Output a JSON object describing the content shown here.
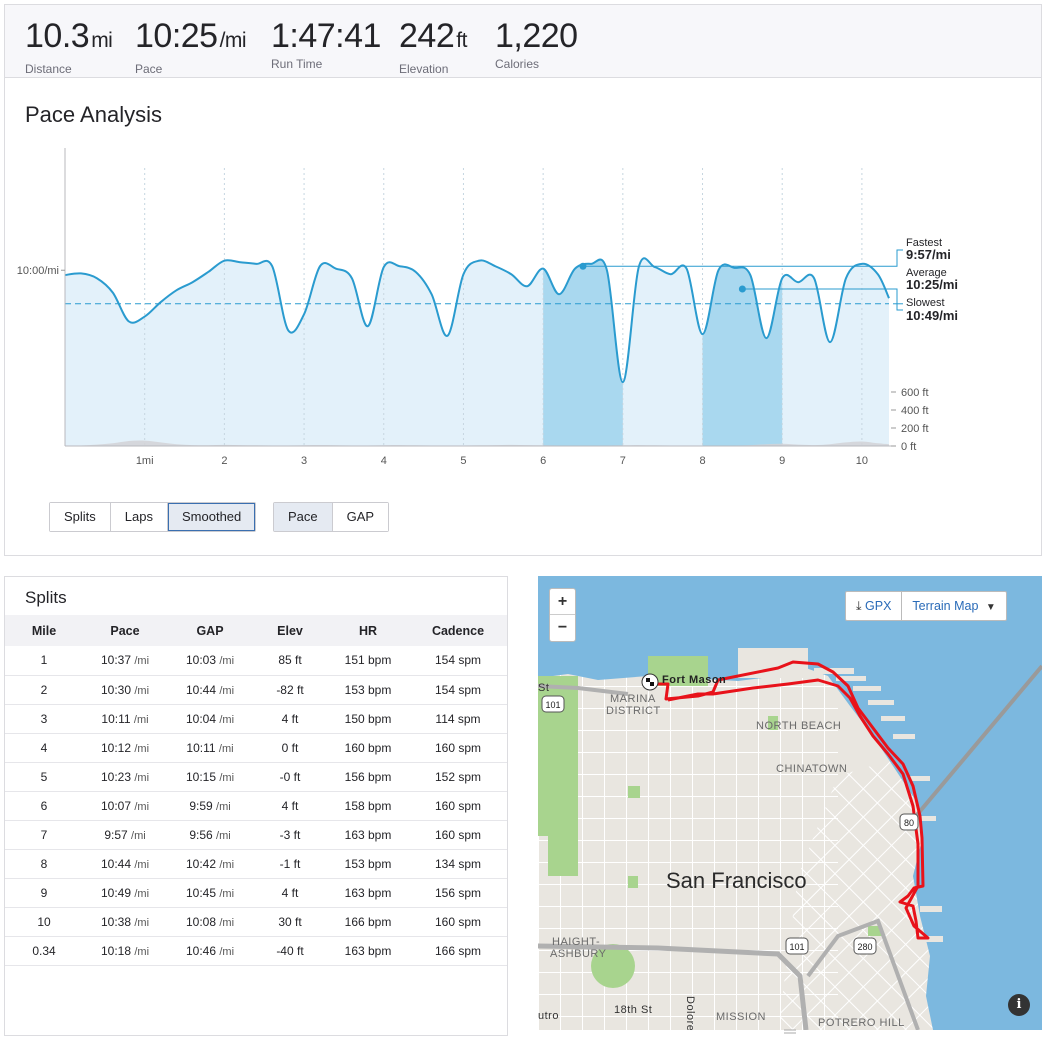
{
  "stats": [
    {
      "value": "10.3",
      "unit": "mi",
      "label": "Distance"
    },
    {
      "value": "10:25",
      "unit": "/mi",
      "label": "Pace"
    },
    {
      "value": "1:47:41",
      "unit": "",
      "label": "Run Time"
    },
    {
      "value": "242",
      "unit": "ft",
      "label": "Elevation"
    },
    {
      "value": "1,220",
      "unit": "",
      "label": "Calories"
    }
  ],
  "pace_analysis": {
    "title": "Pace Analysis",
    "y_reference_label": "10:00/mi",
    "x_ticks": [
      "1mi",
      "2",
      "3",
      "4",
      "5",
      "6",
      "7",
      "8",
      "9",
      "10"
    ],
    "elev_ticks": [
      "600 ft",
      "400 ft",
      "200 ft",
      "0 ft"
    ],
    "fastest_label": "Fastest",
    "fastest_value": "9:57/mi",
    "average_label": "Average",
    "average_value": "10:25/mi",
    "slowest_label": "Slowest",
    "slowest_value": "10:49/mi",
    "highlighted_miles": [
      6,
      8
    ],
    "view_buttons": [
      "Splits",
      "Laps",
      "Smoothed"
    ],
    "view_active": "Smoothed",
    "metric_buttons": [
      "Pace",
      "GAP"
    ],
    "metric_active": "Pace"
  },
  "chart_data": {
    "type": "area",
    "title": "Pace Analysis",
    "xlabel": "",
    "ylabel": "",
    "x_unit": "mi",
    "y_unit": "min/mi",
    "xlim": [
      0,
      10.34
    ],
    "ylim_pace_min_per_mi_top_to_bottom": [
      8.47,
      12.2
    ],
    "reference_y": 10.0,
    "average": 10.42,
    "fastest": 9.95,
    "slowest": 10.82,
    "grid": "vertical dashed at each mile",
    "x": [
      0.0,
      0.2,
      0.4,
      0.6,
      0.8,
      1.0,
      1.2,
      1.4,
      1.6,
      1.8,
      2.0,
      2.2,
      2.4,
      2.6,
      2.8,
      3.0,
      3.2,
      3.4,
      3.6,
      3.8,
      4.0,
      4.2,
      4.4,
      4.6,
      4.8,
      5.0,
      5.2,
      5.4,
      5.6,
      5.8,
      6.0,
      6.2,
      6.4,
      6.6,
      6.8,
      7.0,
      7.2,
      7.4,
      7.6,
      7.8,
      8.0,
      8.2,
      8.4,
      8.6,
      8.8,
      9.0,
      9.2,
      9.4,
      9.6,
      9.8,
      10.0,
      10.2,
      10.34
    ],
    "pace": [
      10.06,
      10.04,
      10.1,
      10.28,
      10.64,
      10.58,
      10.4,
      10.25,
      10.15,
      10.02,
      9.88,
      9.9,
      9.92,
      9.95,
      10.75,
      10.55,
      9.95,
      9.98,
      10.1,
      10.7,
      9.96,
      9.95,
      10.02,
      10.3,
      10.82,
      10.05,
      9.88,
      9.95,
      10.05,
      10.2,
      9.98,
      10.3,
      9.98,
      9.92,
      10.0,
      11.4,
      9.96,
      9.96,
      10.05,
      9.98,
      10.8,
      10.0,
      9.97,
      10.06,
      10.85,
      10.1,
      10.15,
      10.1,
      10.9,
      10.1,
      9.92,
      10.05,
      10.35
    ],
    "elevation_ft": [
      0,
      5,
      15,
      30,
      55,
      60,
      40,
      20,
      10,
      8,
      12,
      10,
      8,
      6,
      5,
      8,
      10,
      8,
      5,
      5,
      8,
      10,
      8,
      6,
      5,
      5,
      8,
      10,
      12,
      10,
      8,
      6,
      5,
      5,
      6,
      8,
      10,
      8,
      6,
      5,
      5,
      5,
      6,
      10,
      20,
      25,
      15,
      10,
      20,
      40,
      50,
      30,
      20
    ],
    "elevation_ticks_ft": [
      0,
      200,
      400,
      600
    ]
  },
  "splits": {
    "title": "Splits",
    "headers": [
      "Mile",
      "Pace",
      "GAP",
      "Elev",
      "HR",
      "Cadence"
    ],
    "rows": [
      {
        "mile": "1",
        "pace": "10:37",
        "gap": "10:03",
        "elev": "85 ft",
        "hr": "151 bpm",
        "cad": "154 spm"
      },
      {
        "mile": "2",
        "pace": "10:30",
        "gap": "10:44",
        "elev": "-82 ft",
        "hr": "153 bpm",
        "cad": "154 spm"
      },
      {
        "mile": "3",
        "pace": "10:11",
        "gap": "10:04",
        "elev": "4 ft",
        "hr": "150 bpm",
        "cad": "114 spm"
      },
      {
        "mile": "4",
        "pace": "10:12",
        "gap": "10:11",
        "elev": "0 ft",
        "hr": "160 bpm",
        "cad": "160 spm"
      },
      {
        "mile": "5",
        "pace": "10:23",
        "gap": "10:15",
        "elev": "-0 ft",
        "hr": "156 bpm",
        "cad": "152 spm"
      },
      {
        "mile": "6",
        "pace": "10:07",
        "gap": "9:59",
        "elev": "4 ft",
        "hr": "158 bpm",
        "cad": "160 spm"
      },
      {
        "mile": "7",
        "pace": "9:57",
        "gap": "9:56",
        "elev": "-3 ft",
        "hr": "163 bpm",
        "cad": "160 spm"
      },
      {
        "mile": "8",
        "pace": "10:44",
        "gap": "10:42",
        "elev": "-1 ft",
        "hr": "153 bpm",
        "cad": "134 spm"
      },
      {
        "mile": "9",
        "pace": "10:49",
        "gap": "10:45",
        "elev": "4 ft",
        "hr": "163 bpm",
        "cad": "156 spm"
      },
      {
        "mile": "10",
        "pace": "10:38",
        "gap": "10:08",
        "elev": "30 ft",
        "hr": "166 bpm",
        "cad": "160 spm"
      },
      {
        "mile": "0.34",
        "pace": "10:18",
        "gap": "10:46",
        "elev": "-40 ft",
        "hr": "163 bpm",
        "cad": "166 spm"
      }
    ],
    "pace_unit": "/mi"
  },
  "map": {
    "zoom_in": "+",
    "zoom_out": "−",
    "gpx_label": "GPX",
    "terrain_label": "Terrain Map",
    "info": "i",
    "city": "San Francisco",
    "labels": {
      "fort_mason": "Fort Mason",
      "marina1": "MARINA",
      "marina2": "DISTRICT",
      "north_beach": "NORTH BEACH",
      "chinatown": "CHINATOWN",
      "haight1": "HAIGHT-",
      "haight2": "ASHBURY",
      "mission": "MISSION",
      "potrero": "POTRERO HILL",
      "street_18": "18th St",
      "dolores": "Dolores",
      "hwy101a": "101",
      "hwy101b": "101",
      "hwy80": "80",
      "hwy280": "280",
      "st": "St",
      "sutro": "utro"
    },
    "colors": {
      "water": "#7cb8df",
      "land": "#e9e6e0",
      "park": "#a8d48e",
      "route": "#e8121a"
    }
  }
}
